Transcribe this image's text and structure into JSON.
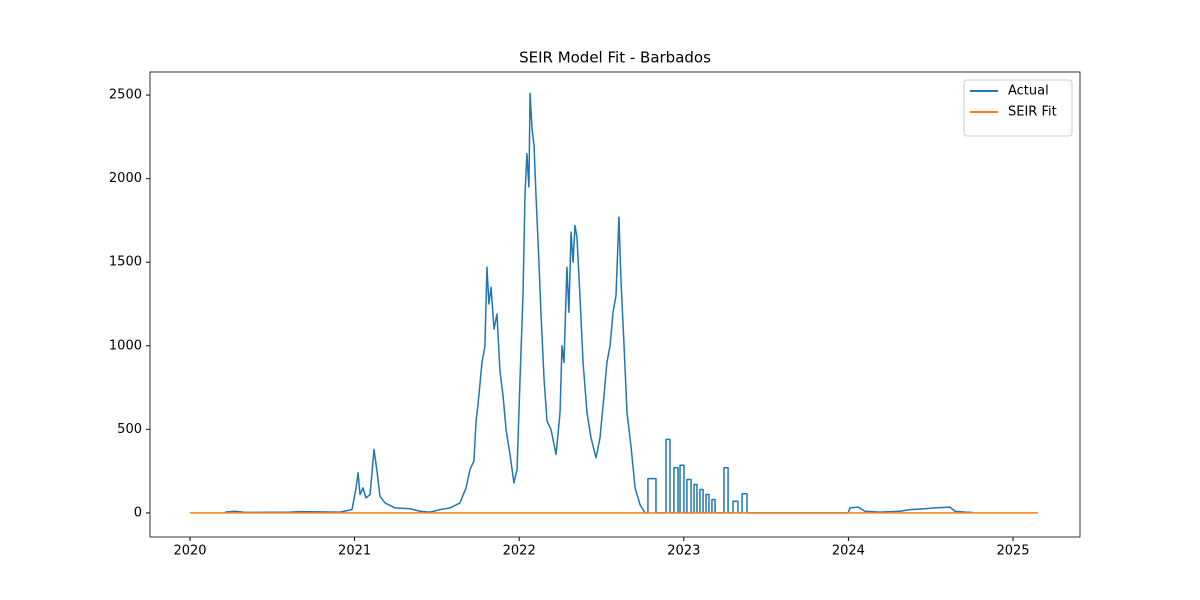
{
  "chart_data": {
    "type": "line",
    "title": "SEIR Model Fit - Barbados",
    "xlim": [
      2019.757,
      2025.407
    ],
    "xticks": [
      2020,
      2021,
      2022,
      2023,
      2024,
      2025
    ],
    "ylim": [
      -144,
      2638
    ],
    "yticks": [
      0,
      500,
      1000,
      1500,
      2000,
      2500
    ],
    "grid": false,
    "legend": "upper right",
    "series": [
      {
        "name": "Actual",
        "color": "#1f77b4",
        "x": [
          2020.213,
          2020.273,
          2020.334,
          2020.608,
          2020.668,
          2020.911,
          2020.984,
          2021.009,
          2021.021,
          2021.033,
          2021.051,
          2021.069,
          2021.094,
          2021.118,
          2021.136,
          2021.154,
          2021.185,
          2021.245,
          2021.337,
          2021.397,
          2021.458,
          2021.519,
          2021.58,
          2021.64,
          2021.677,
          2021.701,
          2021.725,
          2021.738,
          2021.75,
          2021.774,
          2021.792,
          2021.804,
          2021.816,
          2021.829,
          2021.847,
          2021.865,
          2021.883,
          2021.902,
          2021.92,
          2021.944,
          2021.968,
          2021.987,
          2022.005,
          2022.023,
          2022.035,
          2022.047,
          2022.059,
          2022.066,
          2022.078,
          2022.09,
          2022.102,
          2022.12,
          2022.132,
          2022.151,
          2022.169,
          2022.193,
          2022.224,
          2022.248,
          2022.26,
          2022.272,
          2022.29,
          2022.302,
          2022.315,
          2022.327,
          2022.339,
          2022.351,
          2022.369,
          2022.388,
          2022.412,
          2022.436,
          2022.467,
          2022.491,
          2022.515,
          2022.533,
          2022.552,
          2022.57,
          2022.588,
          2022.606,
          2022.618,
          2022.637,
          2022.655,
          2022.679,
          2022.704,
          2022.734,
          2022.764,
          2022.782,
          2022.782,
          2022.831,
          2022.831,
          2022.892,
          2022.892,
          2022.916,
          2022.916,
          2022.94,
          2022.94,
          2022.965,
          2022.965,
          2022.977,
          2022.977,
          2023.001,
          2023.001,
          2023.019,
          2023.019,
          2023.044,
          2023.044,
          2023.062,
          2023.062,
          2023.08,
          2023.08,
          2023.098,
          2023.098,
          2023.117,
          2023.117,
          2023.135,
          2023.135,
          2023.153,
          2023.153,
          2023.171,
          2023.171,
          2023.19,
          2023.19,
          2023.244,
          2023.244,
          2023.269,
          2023.269,
          2023.299,
          2023.299,
          2023.329,
          2023.329,
          2023.354,
          2023.354,
          2023.384,
          2023.384,
          2023.402,
          2023.998,
          2024.01,
          2024.058,
          2024.101,
          2024.192,
          2024.313,
          2024.374,
          2024.465,
          2024.526,
          2024.617,
          2024.648,
          2024.708,
          2024.751
        ],
        "values": [
          5,
          10,
          3,
          5,
          8,
          5,
          20,
          150,
          240,
          110,
          150,
          90,
          110,
          380,
          250,
          100,
          60,
          30,
          25,
          10,
          5,
          20,
          30,
          60,
          150,
          260,
          310,
          550,
          650,
          900,
          1000,
          1470,
          1250,
          1350,
          1100,
          1190,
          850,
          700,
          500,
          350,
          180,
          260,
          800,
          1300,
          1900,
          2150,
          1950,
          2510,
          2300,
          2200,
          1900,
          1500,
          1200,
          800,
          550,
          500,
          350,
          600,
          1000,
          900,
          1470,
          1200,
          1680,
          1500,
          1720,
          1650,
          1300,
          900,
          600,
          450,
          330,
          450,
          700,
          900,
          1000,
          1200,
          1300,
          1770,
          1400,
          1000,
          600,
          400,
          150,
          50,
          0,
          0,
          205,
          205,
          0,
          0,
          440,
          440,
          0,
          0,
          270,
          270,
          0,
          0,
          285,
          285,
          0,
          0,
          200,
          200,
          0,
          0,
          170,
          170,
          0,
          0,
          140,
          140,
          0,
          0,
          110,
          110,
          0,
          0,
          80,
          80,
          0,
          0,
          270,
          270,
          0,
          0,
          70,
          70,
          0,
          0,
          115,
          115,
          0,
          0,
          0,
          30,
          35,
          10,
          5,
          10,
          20,
          25,
          30,
          35,
          10,
          5,
          3
        ]
      },
      {
        "name": "SEIR Fit",
        "color": "#ff7f0e",
        "x": [
          2020.0,
          2025.152
        ],
        "values": [
          0,
          0
        ]
      }
    ]
  }
}
